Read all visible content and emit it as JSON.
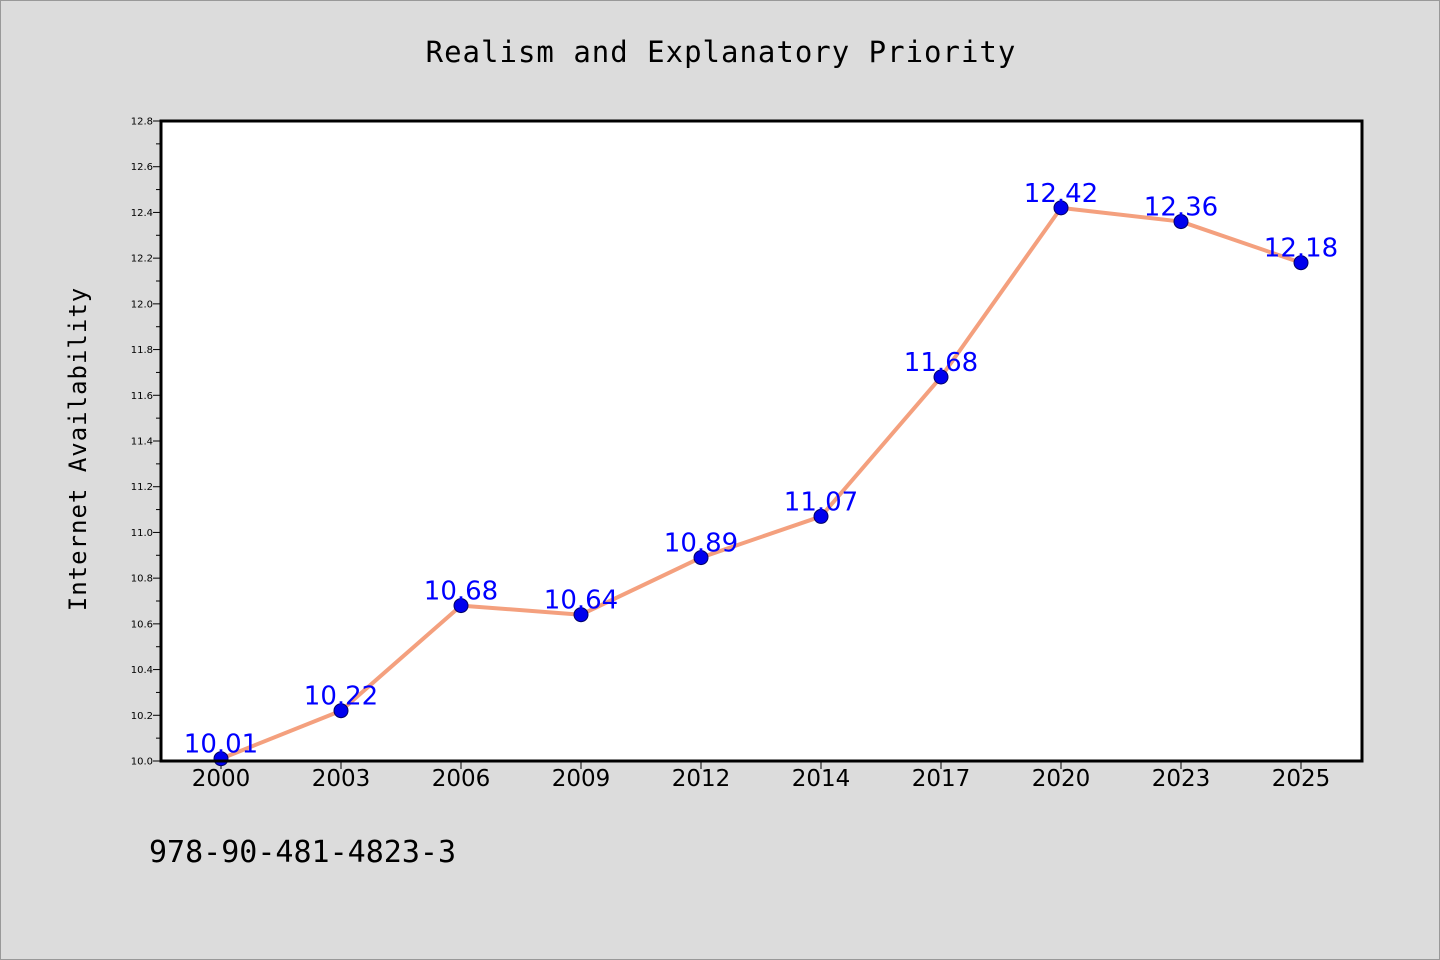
{
  "chart_data": {
    "type": "line",
    "title": "Realism and Explanatory Priority",
    "xlabel": "",
    "ylabel": "Internet Availability",
    "categories": [
      "2000",
      "2003",
      "2006",
      "2009",
      "2012",
      "2014",
      "2017",
      "2020",
      "2023",
      "2025"
    ],
    "series": [
      {
        "values": [
          10.01,
          10.22,
          10.68,
          10.64,
          10.89,
          11.07,
          11.68,
          12.42,
          12.36,
          12.18
        ],
        "data_labels": [
          "10.01",
          "10.22",
          "10.68",
          "10.64",
          "10.89",
          "11.07",
          "11.68",
          "12.42",
          "12.36",
          "12.18"
        ],
        "line_color": "#f4a07e",
        "marker_color": "#0000ee",
        "label_color": "#0000ff"
      }
    ],
    "ylim": [
      10.0,
      12.8
    ],
    "yticks": [
      "10.0",
      "10.2",
      "10.4",
      "10.6",
      "10.8",
      "11.0",
      "11.2",
      "11.4",
      "11.6",
      "11.8",
      "12.0",
      "12.2",
      "12.4",
      "12.6",
      "12.8"
    ],
    "grid": false,
    "legend": "none"
  },
  "footer": {
    "isbn": "978-90-481-4823-3"
  }
}
